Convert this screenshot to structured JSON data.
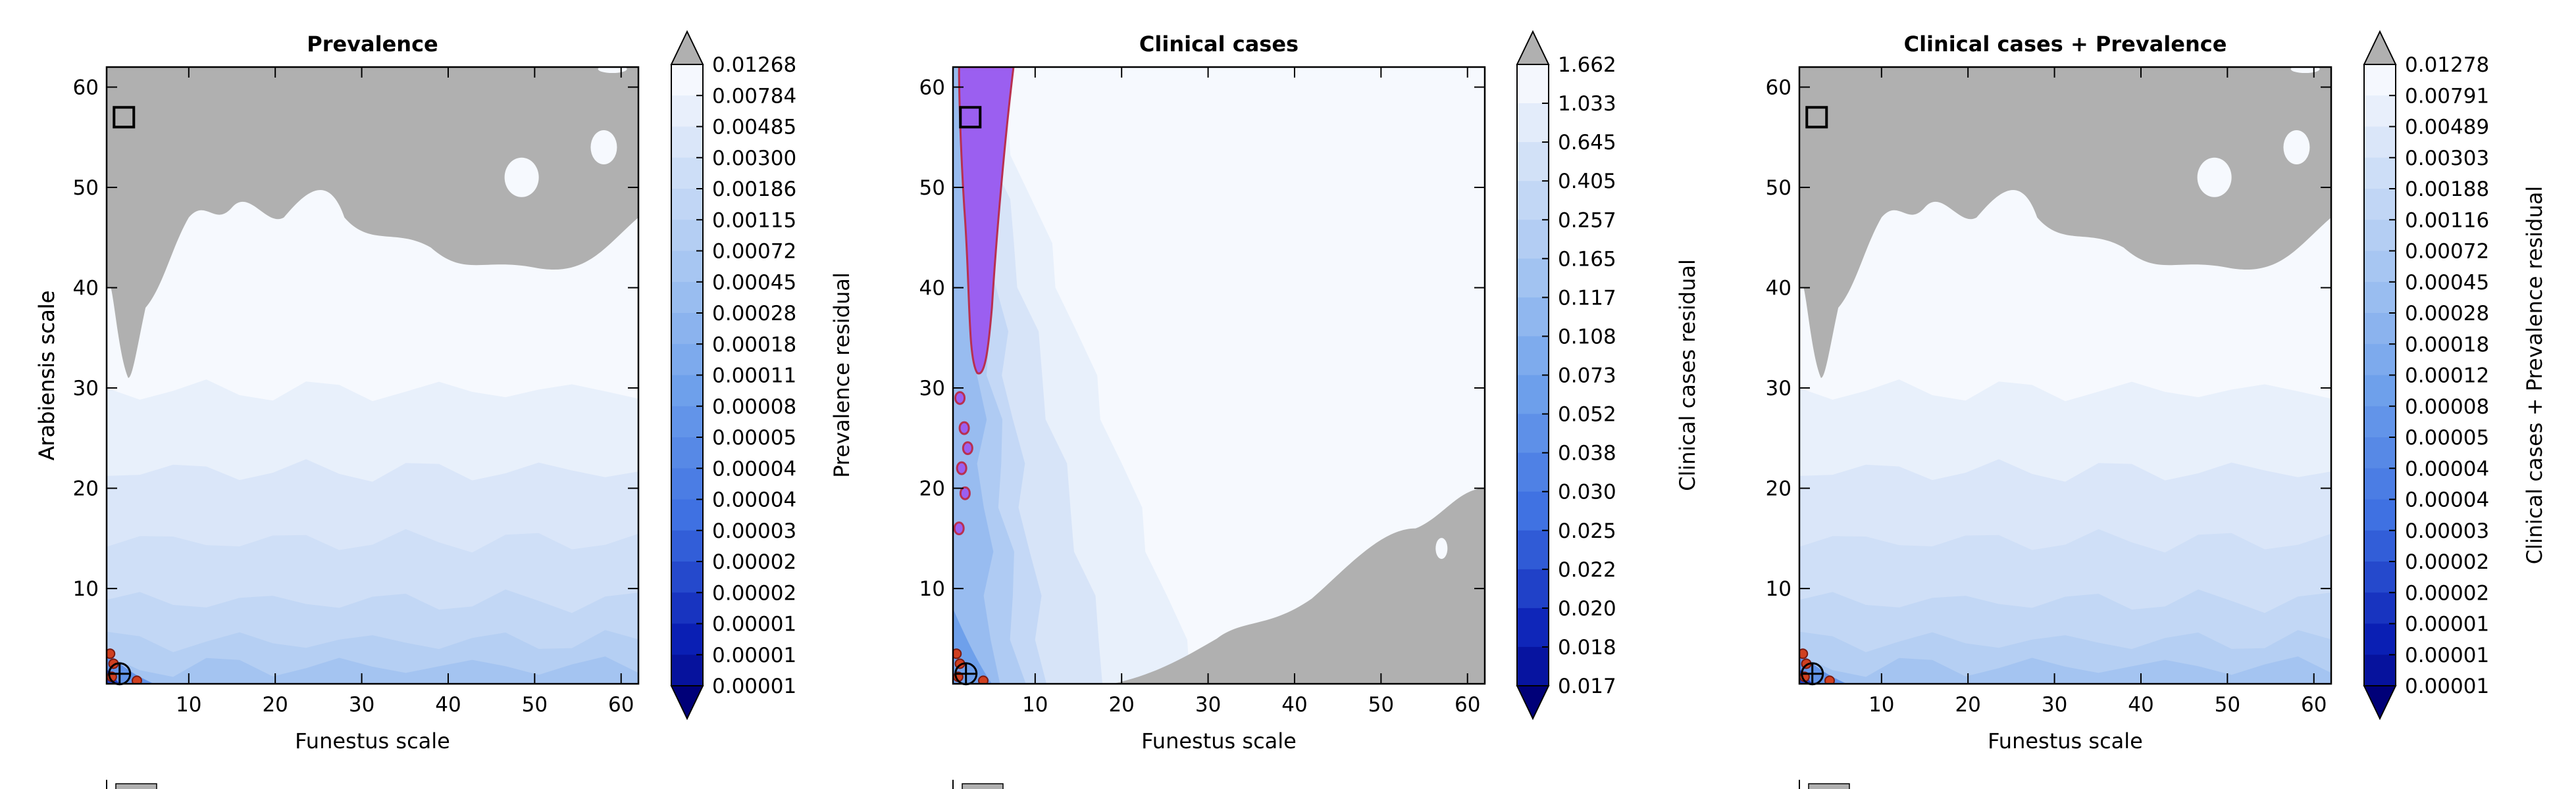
{
  "chart_data": [
    {
      "type": "heatmap",
      "title": "Prevalence",
      "xlabel": "Funestus scale",
      "ylabel": "Arabiensis scale",
      "xlim": [
        0.5,
        62
      ],
      "ylim": [
        0.5,
        62
      ],
      "xticks": [
        10,
        20,
        30,
        40,
        50,
        60
      ],
      "yticks": [
        10,
        20,
        30,
        40,
        50,
        60
      ],
      "colorbar_label": "Prevalence residual",
      "colorbar_ticks": [
        "0.01268",
        "0.00784",
        "0.00485",
        "0.00300",
        "0.00186",
        "0.00115",
        "0.00072",
        "0.00045",
        "0.00028",
        "0.00018",
        "0.00011",
        "0.00008",
        "0.00005",
        "0.00004",
        "0.00004",
        "0.00003",
        "0.00002",
        "0.00002",
        "0.00001",
        "0.00001",
        "0.00001"
      ],
      "colormap": "blues reversed, grey above max",
      "over_color": "#b0b0b0",
      "marker_square": [
        2.5,
        57
      ],
      "marker_circle": [
        2,
        1.5
      ],
      "purple_region": false,
      "grey_region": "top"
    },
    {
      "type": "heatmap",
      "title": "Clinical cases",
      "xlabel": "Funestus scale",
      "ylabel": "Arabiensis scale",
      "xlim": [
        0.5,
        62
      ],
      "ylim": [
        0.5,
        62
      ],
      "xticks": [
        10,
        20,
        30,
        40,
        50,
        60
      ],
      "yticks": [
        10,
        20,
        30,
        40,
        50,
        60
      ],
      "colorbar_label": "Clinical cases residual",
      "colorbar_ticks": [
        "1.662",
        "1.033",
        "0.645",
        "0.405",
        "0.257",
        "0.165",
        "0.117",
        "0.108",
        "0.073",
        "0.052",
        "0.038",
        "0.030",
        "0.025",
        "0.022",
        "0.020",
        "0.018",
        "0.017"
      ],
      "colormap": "blues reversed, grey above max",
      "over_color": "#b0b0b0",
      "marker_square": [
        2.5,
        57
      ],
      "marker_circle": [
        2,
        1.5
      ],
      "purple_region": true,
      "grey_region": "bottom-right"
    },
    {
      "type": "heatmap",
      "title": "Clinical cases + Prevalence",
      "xlabel": "Funestus scale",
      "ylabel": "Arabiensis scale",
      "xlim": [
        0.5,
        62
      ],
      "ylim": [
        0.5,
        62
      ],
      "xticks": [
        10,
        20,
        30,
        40,
        50,
        60
      ],
      "yticks": [
        10,
        20,
        30,
        40,
        50,
        60
      ],
      "colorbar_label": "Clinical cases + Prevalence residual",
      "colorbar_ticks": [
        "0.01278",
        "0.00791",
        "0.00489",
        "0.00303",
        "0.00188",
        "0.00116",
        "0.00072",
        "0.00045",
        "0.00028",
        "0.00018",
        "0.00012",
        "0.00008",
        "0.00005",
        "0.00004",
        "0.00004",
        "0.00003",
        "0.00002",
        "0.00002",
        "0.00001",
        "0.00001",
        "0.00001"
      ],
      "colormap": "blues reversed, grey above max",
      "over_color": "#b0b0b0",
      "marker_square": [
        2.5,
        57
      ],
      "marker_circle": [
        2,
        1.5
      ],
      "purple_region": false,
      "grey_region": "top"
    }
  ]
}
